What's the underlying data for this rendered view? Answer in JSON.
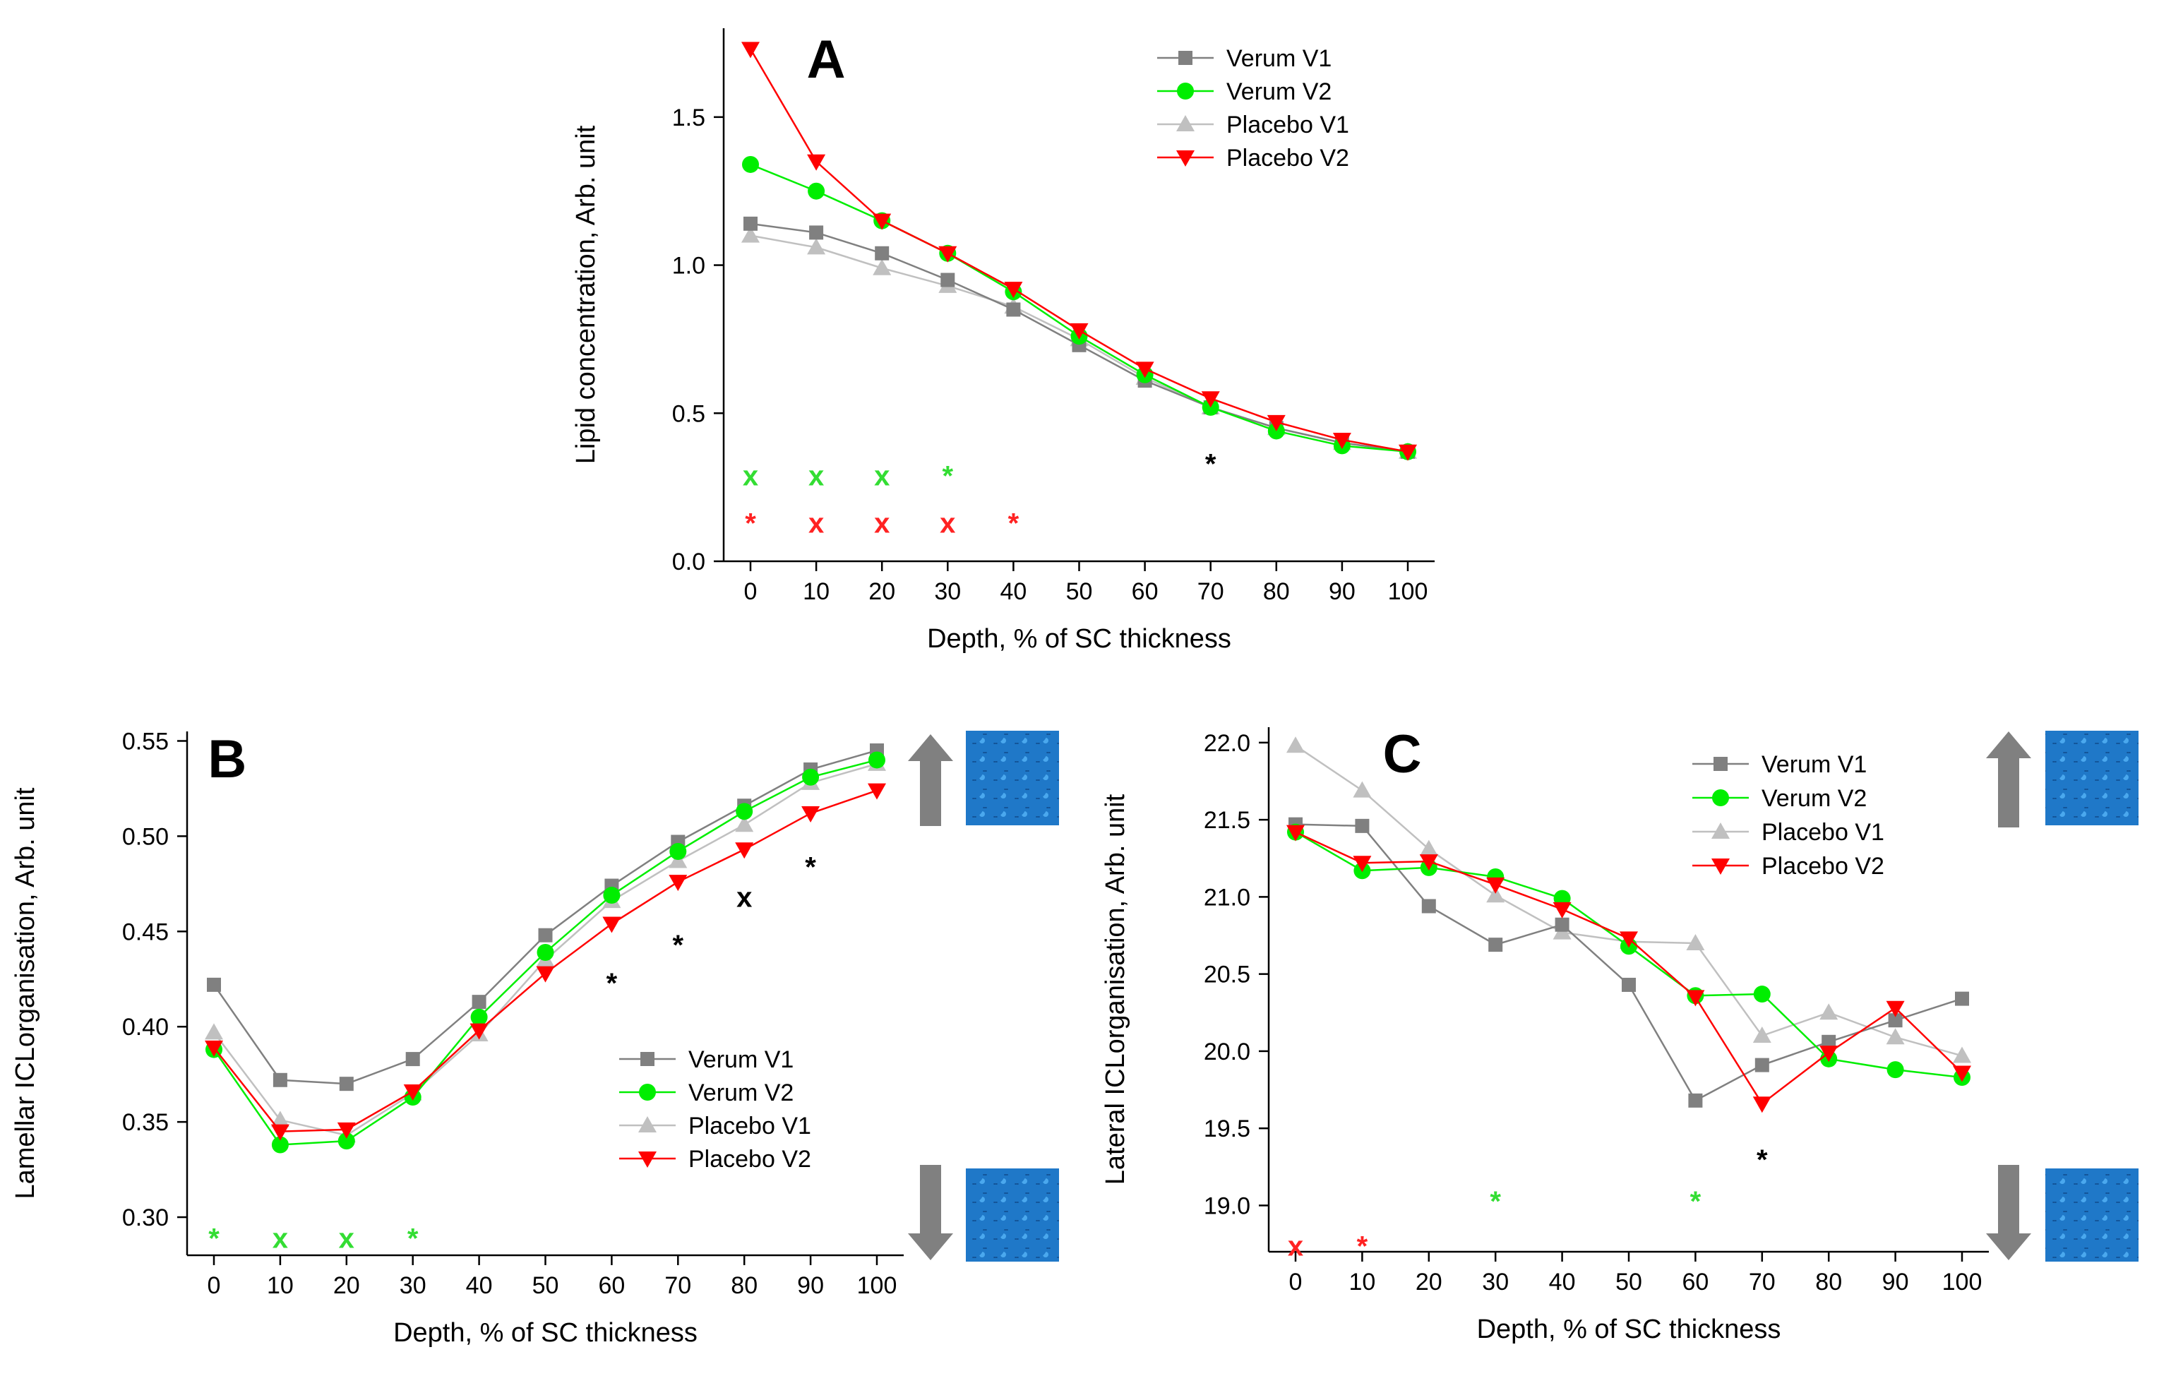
{
  "colors": {
    "verum_v1": "#808080",
    "verum_v2": "#00ee00",
    "placebo_v1": "#c0c0c0",
    "placebo_v2": "#ff0000",
    "annot_black": "#000000",
    "annot_green": "#33dd33",
    "annot_red": "#ff2222",
    "arrow": "#808080",
    "lattice_dark": "#0a3c78",
    "lattice_light": "#2a8ad8"
  },
  "chart_data": [
    {
      "id": "A",
      "type": "line",
      "panel_label": "A",
      "xlabel": "Depth, % of SC thickness",
      "ylabel": "Lipid concentration, Arb. unit",
      "x": [
        0,
        10,
        20,
        30,
        40,
        50,
        60,
        70,
        80,
        90,
        100
      ],
      "xticks": [
        "0",
        "10",
        "20",
        "30",
        "40",
        "50",
        "60",
        "70",
        "80",
        "90",
        "100"
      ],
      "ylim": [
        0,
        1.8
      ],
      "yticks": [
        {
          "v": 0.0,
          "label": "0.0"
        },
        {
          "v": 0.5,
          "label": "0.5"
        },
        {
          "v": 1.0,
          "label": "1.0"
        },
        {
          "v": 1.5,
          "label": "1.5"
        }
      ],
      "legend_position": "top-right",
      "series": [
        {
          "name": "Verum V1",
          "color_key": "verum_v1",
          "marker": "square",
          "values": [
            1.14,
            1.11,
            1.04,
            0.95,
            0.85,
            0.73,
            0.61,
            0.52,
            0.45,
            0.4,
            0.37
          ]
        },
        {
          "name": "Verum V2",
          "color_key": "verum_v2",
          "marker": "circle",
          "values": [
            1.34,
            1.25,
            1.15,
            1.04,
            0.91,
            0.76,
            0.63,
            0.52,
            0.44,
            0.39,
            0.37
          ]
        },
        {
          "name": "Placebo V1",
          "color_key": "placebo_v1",
          "marker": "triangle-up",
          "values": [
            1.1,
            1.06,
            0.99,
            0.93,
            0.86,
            0.75,
            0.62,
            0.52,
            0.45,
            0.4,
            0.37
          ]
        },
        {
          "name": "Placebo V2",
          "color_key": "placebo_v2",
          "marker": "triangle-down",
          "values": [
            1.73,
            1.35,
            1.15,
            1.04,
            0.92,
            0.78,
            0.65,
            0.55,
            0.47,
            0.41,
            0.37
          ]
        }
      ],
      "annotations": [
        {
          "text": "*",
          "x": 70,
          "y": 0.33,
          "color_key": "annot_black"
        },
        {
          "text": "x",
          "x": 0,
          "y": 0.29,
          "color_key": "annot_green"
        },
        {
          "text": "x",
          "x": 10,
          "y": 0.29,
          "color_key": "annot_green"
        },
        {
          "text": "x",
          "x": 20,
          "y": 0.29,
          "color_key": "annot_green"
        },
        {
          "text": "*",
          "x": 30,
          "y": 0.29,
          "color_key": "annot_green"
        },
        {
          "text": "*",
          "x": 0,
          "y": 0.13,
          "color_key": "annot_red"
        },
        {
          "text": "x",
          "x": 10,
          "y": 0.13,
          "color_key": "annot_red"
        },
        {
          "text": "x",
          "x": 20,
          "y": 0.13,
          "color_key": "annot_red"
        },
        {
          "text": "x",
          "x": 30,
          "y": 0.13,
          "color_key": "annot_red"
        },
        {
          "text": "*",
          "x": 40,
          "y": 0.13,
          "color_key": "annot_red"
        }
      ]
    },
    {
      "id": "B",
      "type": "line",
      "panel_label": "B",
      "xlabel": "Depth, % of SC thickness",
      "ylabel": "Lamellar ICLorganisation, Arb. unit",
      "x": [
        0,
        10,
        20,
        30,
        40,
        50,
        60,
        70,
        80,
        90,
        100
      ],
      "xticks": [
        "0",
        "10",
        "20",
        "30",
        "40",
        "50",
        "60",
        "70",
        "80",
        "90",
        "100"
      ],
      "ylim": [
        0.28,
        0.555
      ],
      "yticks": [
        {
          "v": 0.3,
          "label": "0.30"
        },
        {
          "v": 0.35,
          "label": "0.35"
        },
        {
          "v": 0.4,
          "label": "0.40"
        },
        {
          "v": 0.45,
          "label": "0.45"
        },
        {
          "v": 0.5,
          "label": "0.50"
        },
        {
          "v": 0.55,
          "label": "0.55"
        }
      ],
      "legend_position": "bottom-right",
      "series": [
        {
          "name": "Verum V1",
          "color_key": "verum_v1",
          "marker": "square",
          "values": [
            0.422,
            0.372,
            0.37,
            0.383,
            0.413,
            0.448,
            0.474,
            0.497,
            0.516,
            0.535,
            0.545
          ]
        },
        {
          "name": "Verum V2",
          "color_key": "verum_v2",
          "marker": "circle",
          "values": [
            0.388,
            0.338,
            0.34,
            0.363,
            0.405,
            0.439,
            0.469,
            0.492,
            0.513,
            0.531,
            0.54
          ]
        },
        {
          "name": "Placebo V1",
          "color_key": "placebo_v1",
          "marker": "triangle-up",
          "values": [
            0.397,
            0.351,
            0.343,
            0.365,
            0.396,
            0.435,
            0.466,
            0.487,
            0.506,
            0.528,
            0.538
          ]
        },
        {
          "name": "Placebo V2",
          "color_key": "placebo_v2",
          "marker": "triangle-down",
          "values": [
            0.389,
            0.345,
            0.346,
            0.366,
            0.398,
            0.428,
            0.454,
            0.476,
            0.493,
            0.512,
            0.524
          ]
        }
      ],
      "annotations": [
        {
          "text": "*",
          "x": 60,
          "y": 0.423,
          "color_key": "annot_black"
        },
        {
          "text": "*",
          "x": 70,
          "y": 0.443,
          "color_key": "annot_black"
        },
        {
          "text": "x",
          "x": 80,
          "y": 0.468,
          "color_key": "annot_black"
        },
        {
          "text": "*",
          "x": 90,
          "y": 0.484,
          "color_key": "annot_black"
        },
        {
          "text": "*",
          "x": 0,
          "y": 0.289,
          "color_key": "annot_green"
        },
        {
          "text": "x",
          "x": 10,
          "y": 0.289,
          "color_key": "annot_green"
        },
        {
          "text": "x",
          "x": 20,
          "y": 0.289,
          "color_key": "annot_green"
        },
        {
          "text": "*",
          "x": 30,
          "y": 0.289,
          "color_key": "annot_green"
        }
      ]
    },
    {
      "id": "C",
      "type": "line",
      "panel_label": "C",
      "xlabel": "Depth, % of SC thickness",
      "ylabel": "Lateral ICLorganisation, Arb. unit",
      "x": [
        0,
        10,
        20,
        30,
        40,
        50,
        60,
        70,
        80,
        90,
        100
      ],
      "xticks": [
        "0",
        "10",
        "20",
        "30",
        "40",
        "50",
        "60",
        "70",
        "80",
        "90",
        "100"
      ],
      "ylim": [
        18.7,
        22.1
      ],
      "yticks": [
        {
          "v": 19.0,
          "label": "19.0"
        },
        {
          "v": 19.5,
          "label": "19.5"
        },
        {
          "v": 20.0,
          "label": "20.0"
        },
        {
          "v": 20.5,
          "label": "20.5"
        },
        {
          "v": 21.0,
          "label": "21.0"
        },
        {
          "v": 21.5,
          "label": "21.5"
        },
        {
          "v": 22.0,
          "label": "22.0"
        }
      ],
      "legend_position": "top-right",
      "series": [
        {
          "name": "Verum V1",
          "color_key": "verum_v1",
          "marker": "square",
          "values": [
            21.47,
            21.46,
            20.94,
            20.69,
            20.82,
            20.43,
            19.68,
            19.91,
            20.06,
            20.2,
            20.34
          ]
        },
        {
          "name": "Verum V2",
          "color_key": "verum_v2",
          "marker": "circle",
          "values": [
            21.42,
            21.17,
            21.19,
            21.13,
            20.99,
            20.68,
            20.36,
            20.37,
            19.95,
            19.88,
            19.83
          ]
        },
        {
          "name": "Placebo V1",
          "color_key": "placebo_v1",
          "marker": "triangle-up",
          "values": [
            21.98,
            21.69,
            21.31,
            21.01,
            20.77,
            20.71,
            20.7,
            20.1,
            20.25,
            20.09,
            19.97
          ]
        },
        {
          "name": "Placebo V2",
          "color_key": "placebo_v2",
          "marker": "triangle-down",
          "values": [
            21.42,
            21.22,
            21.23,
            21.08,
            20.92,
            20.73,
            20.35,
            19.66,
            19.99,
            20.28,
            19.86
          ]
        }
      ],
      "annotations": [
        {
          "text": "*",
          "x": 70,
          "y": 19.3,
          "color_key": "annot_black"
        },
        {
          "text": "*",
          "x": 30,
          "y": 19.03,
          "color_key": "annot_green"
        },
        {
          "text": "*",
          "x": 60,
          "y": 19.03,
          "color_key": "annot_green"
        },
        {
          "text": "x",
          "x": 0,
          "y": 18.74,
          "color_key": "annot_red"
        },
        {
          "text": "*",
          "x": 10,
          "y": 18.74,
          "color_key": "annot_red"
        }
      ]
    }
  ]
}
